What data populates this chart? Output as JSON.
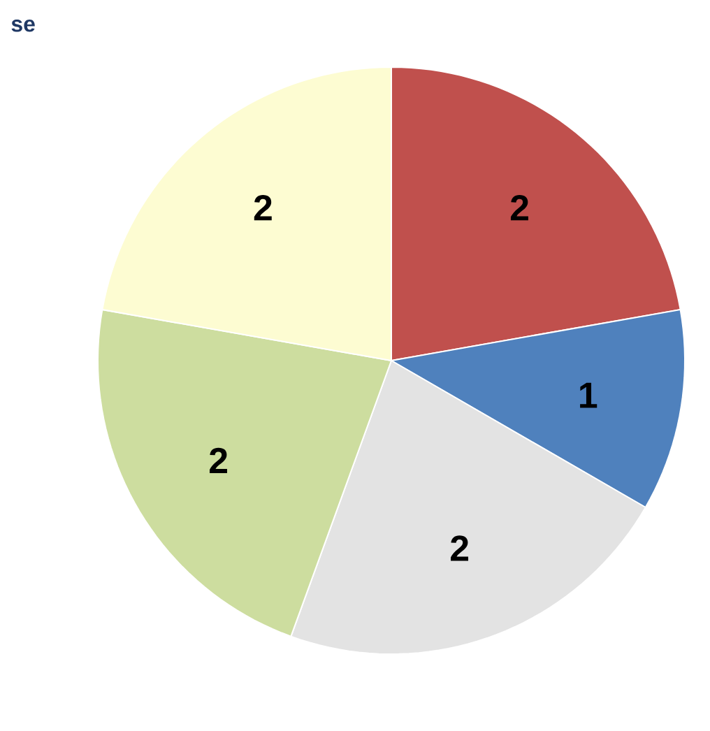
{
  "chart_data": {
    "type": "pie",
    "title": "se",
    "categories": [
      null,
      null,
      null,
      null,
      null
    ],
    "values": [
      2,
      1,
      2,
      2,
      2
    ],
    "colors": [
      "#c0504d",
      "#4f81bd",
      "#e3e3e3",
      "#cddd9f",
      "#fdfcd2"
    ],
    "value_labels": [
      "2",
      "1",
      "2",
      "2",
      "2"
    ]
  }
}
